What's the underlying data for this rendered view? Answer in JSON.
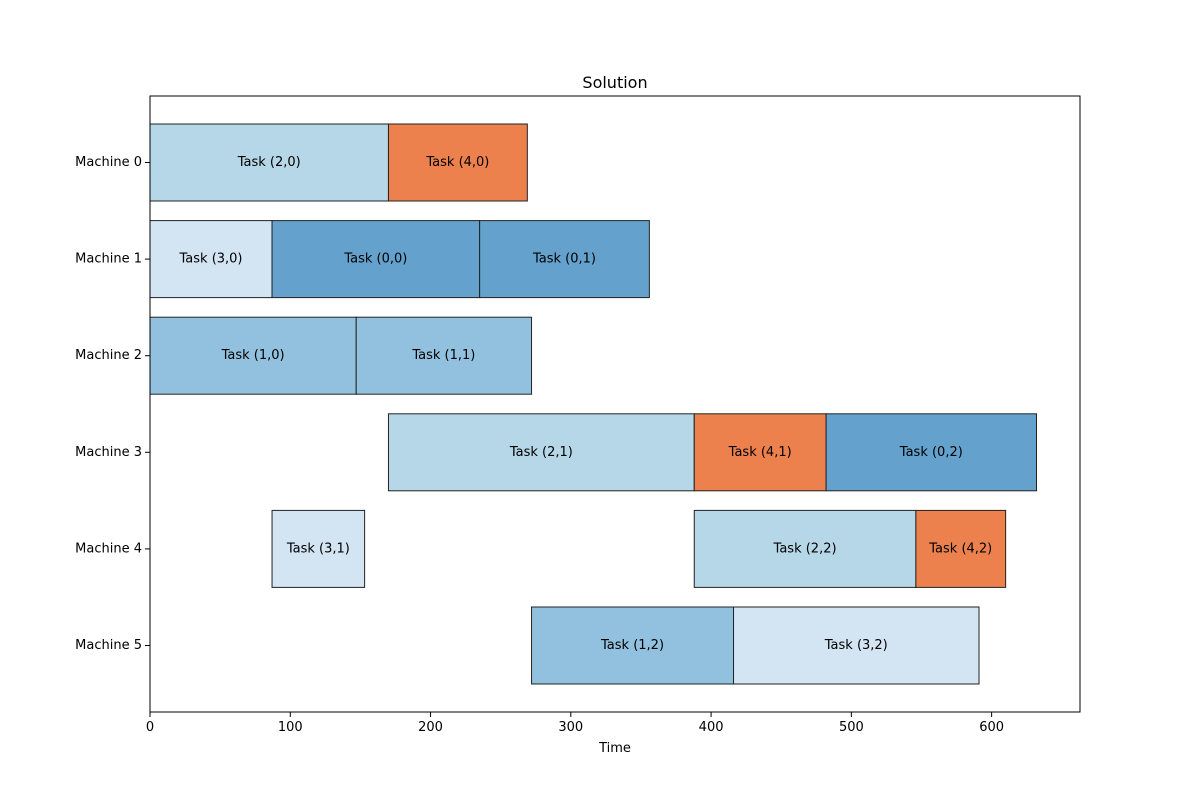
{
  "chart_data": {
    "type": "bar",
    "orientation": "horizontal-gantt",
    "title": "Solution",
    "xlabel": "Time",
    "ylabel": "",
    "xlim": [
      0,
      663
    ],
    "xticks": [
      0,
      100,
      200,
      300,
      400,
      500,
      600
    ],
    "categories": [
      "Machine 0",
      "Machine 1",
      "Machine 2",
      "Machine 3",
      "Machine 4",
      "Machine 5"
    ],
    "grid": false,
    "legend": "none",
    "job_colors": {
      "0": "#64a2cd",
      "1": "#91c1df",
      "2": "#b6d7e8",
      "3": "#d3e4f3",
      "4": "#ec814d"
    },
    "tasks": [
      {
        "machine": 0,
        "job": 2,
        "label": "Task (2,0)",
        "start": 0,
        "end": 170
      },
      {
        "machine": 0,
        "job": 4,
        "label": "Task (4,0)",
        "start": 170,
        "end": 269
      },
      {
        "machine": 1,
        "job": 3,
        "label": "Task (3,0)",
        "start": 0,
        "end": 87
      },
      {
        "machine": 1,
        "job": 0,
        "label": "Task (0,0)",
        "start": 87,
        "end": 235
      },
      {
        "machine": 1,
        "job": 0,
        "label": "Task (0,1)",
        "start": 235,
        "end": 356
      },
      {
        "machine": 2,
        "job": 1,
        "label": "Task (1,0)",
        "start": 0,
        "end": 147
      },
      {
        "machine": 2,
        "job": 1,
        "label": "Task (1,1)",
        "start": 147,
        "end": 272
      },
      {
        "machine": 3,
        "job": 2,
        "label": "Task (2,1)",
        "start": 170,
        "end": 388
      },
      {
        "machine": 3,
        "job": 4,
        "label": "Task (4,1)",
        "start": 388,
        "end": 482
      },
      {
        "machine": 3,
        "job": 0,
        "label": "Task (0,2)",
        "start": 482,
        "end": 632
      },
      {
        "machine": 4,
        "job": 3,
        "label": "Task (3,1)",
        "start": 87,
        "end": 153
      },
      {
        "machine": 4,
        "job": 2,
        "label": "Task (2,2)",
        "start": 388,
        "end": 546
      },
      {
        "machine": 4,
        "job": 4,
        "label": "Task (4,2)",
        "start": 546,
        "end": 610
      },
      {
        "machine": 5,
        "job": 1,
        "label": "Task (1,2)",
        "start": 272,
        "end": 416
      },
      {
        "machine": 5,
        "job": 3,
        "label": "Task (3,2)",
        "start": 416,
        "end": 591
      }
    ]
  }
}
